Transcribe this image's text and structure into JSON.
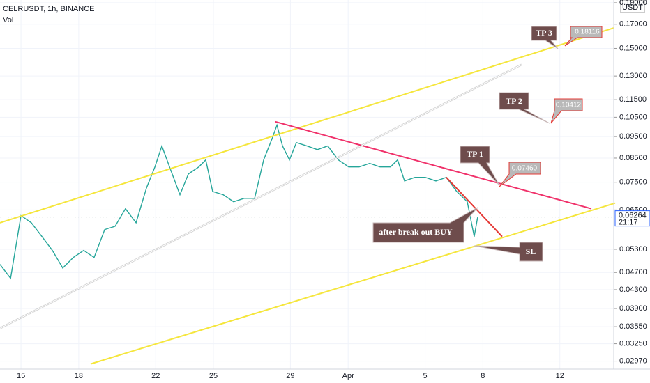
{
  "chart_data": {
    "type": "line",
    "title": "CELRUSDT, 1h, BINANCE",
    "subtitle": "Vol",
    "currency": "USDT",
    "last_price_label": "0.06264",
    "countdown": "21:17",
    "log_scale": true,
    "color": "#26a69a",
    "x": [
      13.91,
      14.46,
      15,
      15.54,
      16.09,
      16.63,
      17.17,
      17.72,
      18.26,
      18.8,
      19.35,
      19.89,
      20.43,
      20.98,
      21.52,
      21.96,
      22.32,
      22.79,
      23.26,
      23.7,
      24.24,
      24.6,
      24.96,
      25.51,
      26.05,
      26.59,
      27.14,
      27.61,
      28.04,
      28.3,
      28.59,
      28.95,
      29.31,
      29.86,
      30.4,
      30.94,
      31.49,
      32.03,
      32.57,
      33.12,
      33.66,
      34.2,
      34.57,
      34.93,
      35.47,
      36.01,
      36.56,
      37.1,
      37.64,
      38.19,
      38.55,
      38.73
    ],
    "values": [
      0.049,
      0.0456,
      0.0631,
      0.0608,
      0.0566,
      0.0527,
      0.0481,
      0.0508,
      0.0527,
      0.0508,
      0.0587,
      0.0597,
      0.0654,
      0.0608,
      0.0728,
      0.0812,
      0.0905,
      0.0797,
      0.0703,
      0.0783,
      0.0812,
      0.0842,
      0.0715,
      0.0703,
      0.0678,
      0.069,
      0.069,
      0.0842,
      0.0938,
      0.1008,
      0.0905,
      0.0842,
      0.0921,
      0.0905,
      0.0888,
      0.0905,
      0.0842,
      0.0812,
      0.0812,
      0.0827,
      0.0812,
      0.0812,
      0.0842,
      0.0755,
      0.0769,
      0.0769,
      0.0755,
      0.0769,
      0.0715,
      0.0678,
      0.0566,
      0.06264
    ],
    "xlim": [
      13.91,
      45.8
    ],
    "xticks": [
      15,
      18,
      22,
      25,
      29,
      {
        "value": 32,
        "label": "Apr"
      },
      {
        "value": 36,
        "label": "5"
      },
      {
        "value": 39,
        "label": "8"
      },
      {
        "value": 43,
        "label": "12"
      }
    ],
    "ylim": [
      0.0285,
      0.1927
    ],
    "yticks": [
      {
        "value": 0.0297,
        "label": "0.02970"
      },
      {
        "value": 0.0325,
        "label": "0.03250"
      },
      {
        "value": 0.0355,
        "label": "0.03550"
      },
      {
        "value": 0.039,
        "label": "0.03900"
      },
      {
        "value": 0.043,
        "label": "0.04300"
      },
      {
        "value": 0.047,
        "label": "0.04700"
      },
      {
        "value": 0.053,
        "label": "0.05300"
      },
      {
        "value": 0.065,
        "label": "0.06500"
      },
      {
        "value": 0.075,
        "label": "0.07500"
      },
      {
        "value": 0.085,
        "label": "0.08500"
      },
      {
        "value": 0.095,
        "label": "0.09500"
      },
      {
        "value": 0.105,
        "label": "0.10500"
      },
      {
        "value": 0.115,
        "label": "0.11500"
      },
      {
        "value": 0.13,
        "label": "0.13000"
      },
      {
        "value": 0.15,
        "label": "0.15000"
      },
      {
        "value": 0.17,
        "label": "0.17000"
      },
      {
        "value": 0.19,
        "label": "0.19000"
      }
    ],
    "trendlines": [
      {
        "color": "#f5e63c",
        "x": [
          13.91,
          45.8
        ],
        "y": [
          0.0608,
          0.1668
        ]
      },
      {
        "color": "#f5e63c",
        "x": [
          18.62,
          45.87
        ],
        "y": [
          0.02927,
          0.0673
        ]
      },
      {
        "color": "#f0316a",
        "x": [
          28.22,
          44.64
        ],
        "y": [
          0.1026,
          0.0654
        ]
      },
      {
        "color": "#ffffff",
        "x": [
          13.91,
          41.01
        ],
        "y": [
          0.0352,
          0.1379
        ]
      },
      {
        "color": "#e53935",
        "x": [
          37.1,
          40
        ],
        "y": [
          0.0769,
          0.0566
        ]
      }
    ],
    "annotations": [
      {
        "text": "TP 3",
        "price": "0.18116"
      },
      {
        "text": "TP 2",
        "price": "0.10412"
      },
      {
        "text": "TP 1",
        "price": "0.07460"
      },
      {
        "text": "after break out  BUY"
      },
      {
        "text": "SL"
      }
    ]
  }
}
